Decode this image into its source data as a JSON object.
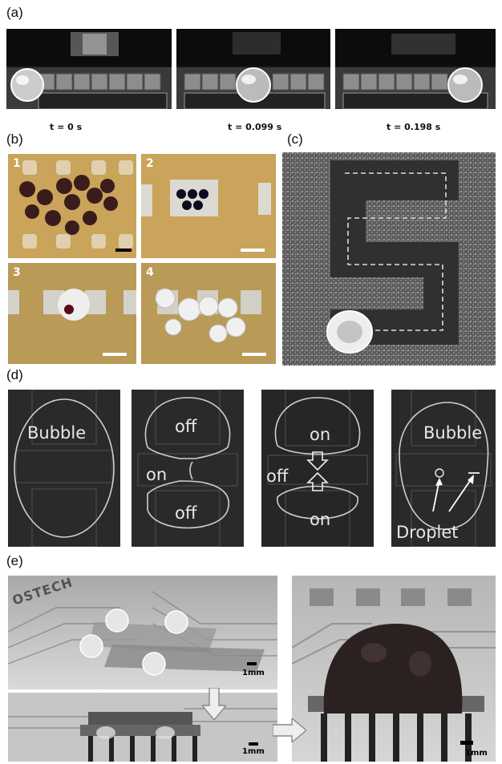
{
  "panels": {
    "a": {
      "label": "(a)",
      "times": [
        "t = 0 s",
        "t = 0.099 s",
        "t = 0.198 s"
      ]
    },
    "b": {
      "label": "(b)",
      "subpanels": [
        "1",
        "2",
        "3",
        "4"
      ]
    },
    "c": {
      "label": "(c)"
    },
    "d": {
      "label": "(d)",
      "frames": [
        {
          "top": "Bubble"
        },
        {
          "top": "off",
          "left": "on",
          "bottom": "off"
        },
        {
          "top": "on",
          "left": "off",
          "bottom": "on"
        },
        {
          "top": "Bubble",
          "bottom": "Droplet"
        }
      ]
    },
    "e": {
      "label": "(e)",
      "scales": [
        "1mm",
        "1mm",
        "1mm"
      ],
      "logo_text": "OSTECH"
    }
  },
  "colors": {
    "board_tan": "#c9a45a",
    "dark_bg": "#2a2a2a",
    "electrode": "#8a8a8a"
  }
}
